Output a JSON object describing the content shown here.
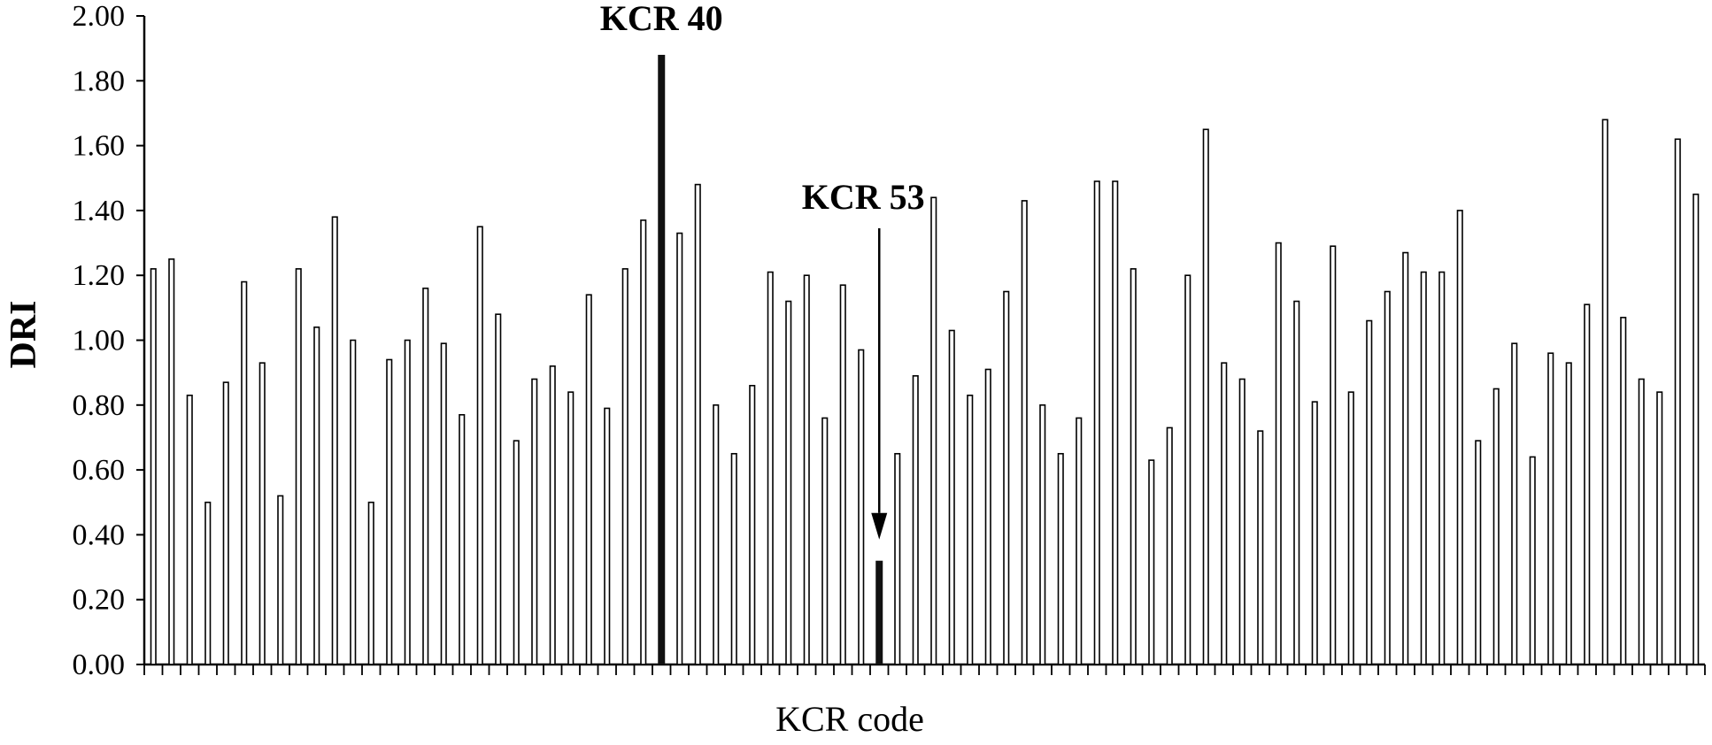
{
  "chart_data": {
    "type": "bar",
    "xlabel": "KCR code",
    "ylabel": "DRI",
    "ylim": [
      0,
      2.0
    ],
    "y_ticks": [
      "0.00",
      "0.20",
      "0.40",
      "0.60",
      "0.80",
      "1.00",
      "1.20",
      "1.40",
      "1.60",
      "1.80",
      "2.00"
    ],
    "grid": false,
    "legend": "none",
    "bar_fill": "#ffffff",
    "bar_stroke": "#000000",
    "highlight_fill": "#111111",
    "values": [
      1.22,
      1.25,
      0.83,
      0.5,
      0.87,
      1.18,
      0.93,
      0.52,
      1.22,
      1.04,
      1.38,
      1.0,
      0.5,
      0.94,
      1.0,
      1.16,
      0.99,
      0.77,
      1.35,
      1.08,
      0.69,
      0.88,
      0.92,
      0.84,
      1.14,
      0.79,
      1.22,
      1.37,
      1.88,
      1.33,
      1.48,
      0.8,
      0.65,
      0.86,
      1.21,
      1.12,
      1.2,
      0.76,
      1.17,
      0.97,
      0.32,
      0.65,
      0.89,
      1.44,
      1.03,
      0.83,
      0.91,
      1.15,
      1.43,
      0.8,
      0.65,
      0.76,
      1.49,
      1.49,
      1.22,
      0.63,
      0.73,
      1.2,
      1.65,
      0.93,
      0.88,
      0.72,
      1.3,
      1.12,
      0.81,
      1.29,
      0.84,
      1.06,
      1.15,
      1.27,
      1.21,
      1.21,
      1.4,
      0.69,
      0.85,
      0.99,
      0.64,
      0.96,
      0.93,
      1.11,
      1.68,
      1.07,
      0.88,
      0.84,
      1.62,
      1.45
    ],
    "highlighted": [
      {
        "index": 28,
        "label": "KCR 40"
      },
      {
        "index": 40,
        "label": "KCR 53"
      }
    ]
  }
}
